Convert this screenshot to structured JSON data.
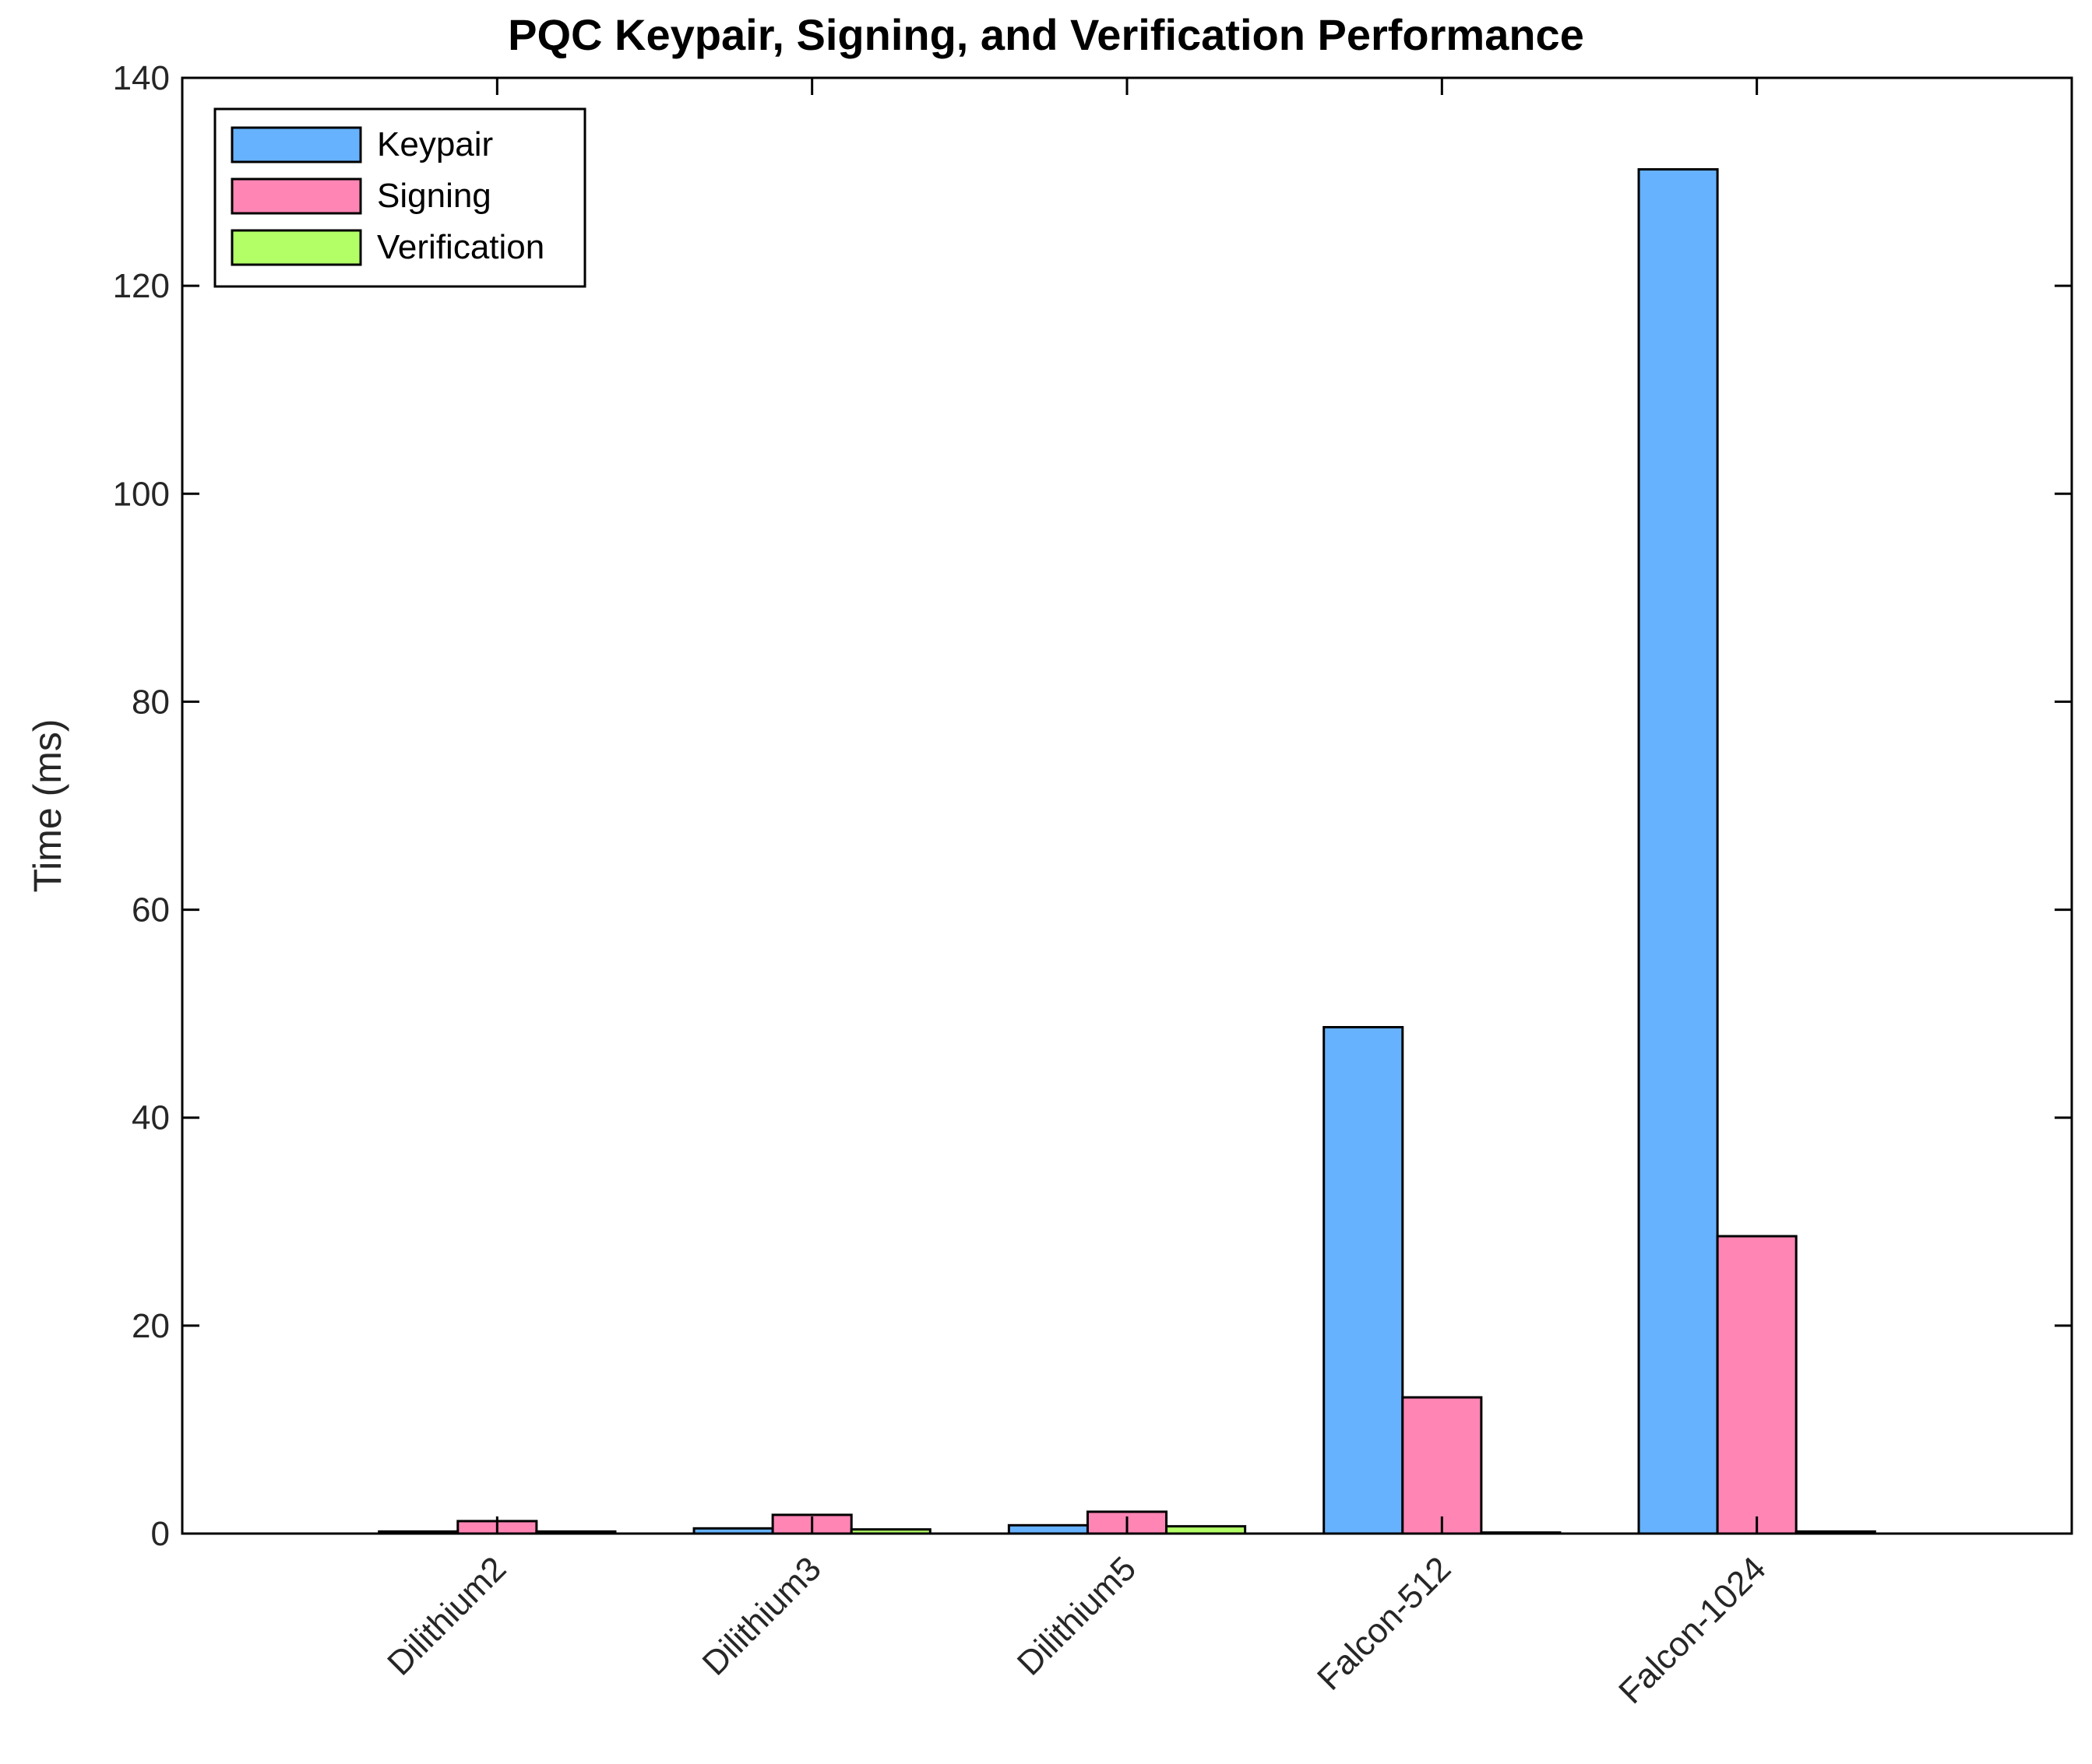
{
  "chart_data": {
    "type": "bar",
    "title": "PQC Keypair, Signing, and Verification Performance",
    "xlabel": "",
    "ylabel": "Time (ms)",
    "categories": [
      "Dilithium2",
      "Dilithium3",
      "Dilithium5",
      "Falcon-512",
      "Falcon-1024"
    ],
    "x_range": [
      0,
      6
    ],
    "ylim": [
      0,
      140
    ],
    "yticks": [
      0,
      20,
      40,
      60,
      80,
      100,
      120,
      140
    ],
    "grid": false,
    "legend_position": "top-left",
    "series": [
      {
        "name": "Keypair",
        "color": "#66B2FF",
        "values": [
          0.2,
          0.5,
          0.8,
          48.7,
          131.2
        ]
      },
      {
        "name": "Signing",
        "color": "#FF85B5",
        "values": [
          1.2,
          1.8,
          2.1,
          13.1,
          28.6
        ]
      },
      {
        "name": "Verification",
        "color": "#B2FF66",
        "values": [
          0.2,
          0.4,
          0.7,
          0.1,
          0.2
        ]
      }
    ]
  }
}
